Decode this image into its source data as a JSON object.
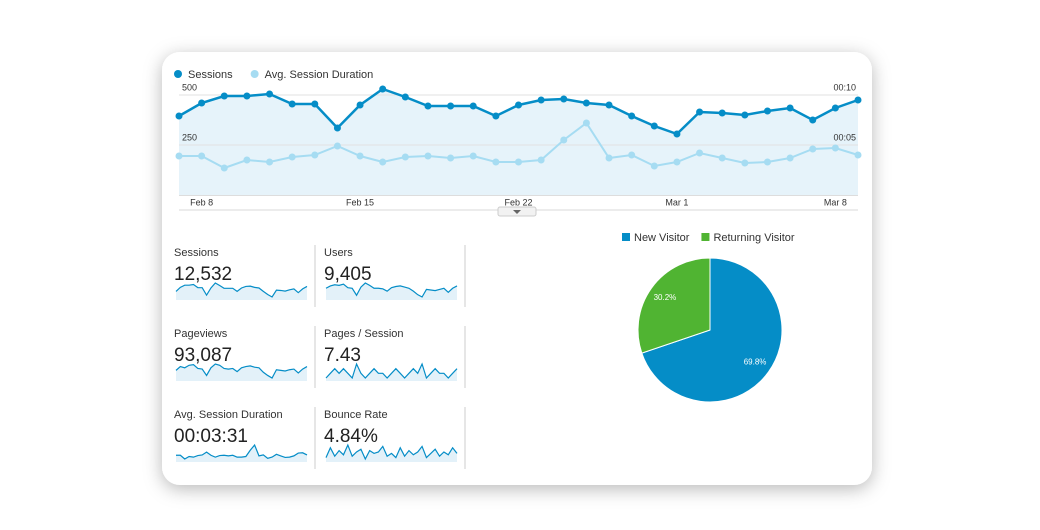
{
  "chart_data": [
    {
      "type": "line",
      "categories": [
        null,
        "Feb 8",
        null,
        null,
        null,
        null,
        null,
        null,
        "Feb 15",
        null,
        null,
        null,
        null,
        null,
        null,
        "Feb 22",
        null,
        null,
        null,
        null,
        null,
        null,
        "Mar 1",
        null,
        null,
        null,
        null,
        null,
        null,
        "Mar 8",
        null
      ],
      "series": [
        {
          "name": "Sessions",
          "color": "#058dc7",
          "values": [
            395,
            460,
            495,
            495,
            505,
            455,
            455,
            335,
            450,
            530,
            490,
            445,
            445,
            445,
            395,
            450,
            475,
            480,
            460,
            450,
            395,
            345,
            305,
            415,
            410,
            400,
            420,
            435,
            375,
            435,
            475
          ]
        },
        {
          "name": "Avg. Session Duration",
          "color": "#a6dcf2",
          "axis": "y2",
          "values": [
            234,
            234,
            162,
            210,
            198,
            228,
            240,
            294,
            234,
            198,
            228,
            234,
            222,
            234,
            198,
            198,
            210,
            330,
            432,
            222,
            240,
            174,
            198,
            252,
            222,
            192,
            198,
            222,
            276,
            282,
            240
          ]
        }
      ],
      "ylim": [
        0,
        550
      ],
      "yticks": [
        250,
        500
      ],
      "y2lim": [
        0,
        660
      ],
      "y2ticks": [
        {
          "value": 300,
          "label": "00:05"
        },
        {
          "value": 600,
          "label": "00:10"
        }
      ],
      "grid": true
    },
    {
      "type": "pie",
      "categories": [
        "New Visitor",
        "Returning Visitor"
      ],
      "values": [
        69.8,
        30.2
      ],
      "value_labels": [
        "69.8%",
        "30.2%"
      ],
      "colors": [
        "#058dc7",
        "#50b432"
      ]
    }
  ],
  "scorecards": [
    {
      "label": "Sessions",
      "value": "12,532"
    },
    {
      "label": "Users",
      "value": "9,405",
      "trend": [
        300,
        320,
        330,
        325,
        335,
        305,
        300,
        240,
        310,
        345,
        325,
        300,
        300,
        295,
        275,
        305,
        315,
        320,
        310,
        300,
        275,
        245,
        225,
        290,
        285,
        280,
        290,
        300,
        265,
        300,
        320
      ]
    },
    {
      "label": "Pageviews",
      "value": "93,087",
      "trend": [
        2900,
        3200,
        3100,
        3300,
        3350,
        3050,
        3000,
        2500,
        3100,
        3400,
        3300,
        3050,
        3000,
        3050,
        2800,
        3100,
        3200,
        3250,
        3150,
        3100,
        2750,
        2500,
        2300,
        2950,
        2900,
        2850,
        2950,
        3000,
        2700,
        3000,
        3200
      ]
    },
    {
      "label": "Pages / Session",
      "value": "7.43",
      "trend": [
        7.3,
        7.4,
        7.5,
        7.4,
        7.5,
        7.4,
        7.3,
        7.6,
        7.4,
        7.3,
        7.4,
        7.5,
        7.4,
        7.4,
        7.3,
        7.4,
        7.5,
        7.4,
        7.3,
        7.4,
        7.5,
        7.4,
        7.6,
        7.3,
        7.4,
        7.5,
        7.4,
        7.4,
        7.3,
        7.4,
        7.5
      ]
    },
    {
      "label": "Avg. Session Duration",
      "value": "00:03:31"
    },
    {
      "label": "Bounce Rate",
      "value": "4.84%",
      "trend": [
        4.5,
        5.2,
        4.6,
        5.0,
        4.7,
        5.4,
        4.6,
        4.9,
        5.1,
        4.4,
        5.0,
        4.8,
        4.9,
        5.3,
        4.6,
        4.8,
        4.5,
        5.2,
        4.6,
        5.0,
        4.7,
        4.9,
        5.3,
        4.5,
        4.8,
        5.1,
        4.6,
        4.9,
        4.7,
        5.2,
        4.8
      ]
    }
  ]
}
